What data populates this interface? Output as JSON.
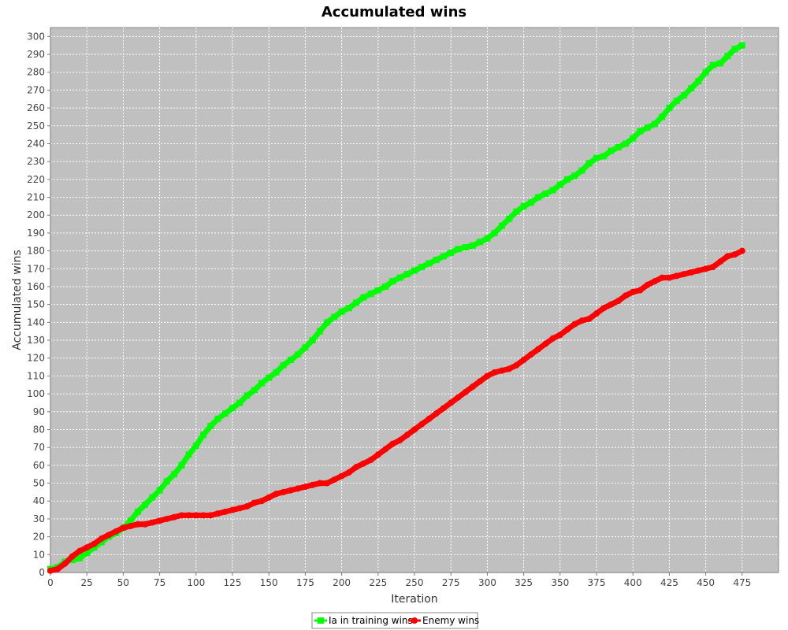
{
  "chart_data": {
    "type": "line",
    "title": "Accumulated wins",
    "xlabel": "Iteration",
    "ylabel": "Accumulated wins",
    "xlim": [
      0,
      500
    ],
    "ylim": [
      0,
      305
    ],
    "x_ticks": [
      0,
      25,
      50,
      75,
      100,
      125,
      150,
      175,
      200,
      225,
      250,
      275,
      300,
      325,
      350,
      375,
      400,
      425,
      450,
      475
    ],
    "y_ticks": [
      0,
      10,
      20,
      30,
      40,
      50,
      60,
      70,
      80,
      90,
      100,
      110,
      120,
      130,
      140,
      150,
      160,
      170,
      180,
      190,
      200,
      210,
      220,
      230,
      240,
      250,
      260,
      270,
      280,
      290,
      300
    ],
    "grid": true,
    "legend_position": "bottom-center",
    "plot_background": "#c0c0c0",
    "series": [
      {
        "name": "Ia in training wins",
        "color": "#00ff00",
        "marker": "square",
        "points": [
          [
            0,
            2
          ],
          [
            5,
            3
          ],
          [
            10,
            6
          ],
          [
            15,
            7
          ],
          [
            20,
            8
          ],
          [
            25,
            11
          ],
          [
            30,
            14
          ],
          [
            35,
            17
          ],
          [
            40,
            20
          ],
          [
            45,
            22
          ],
          [
            50,
            25
          ],
          [
            55,
            29
          ],
          [
            60,
            34
          ],
          [
            65,
            38
          ],
          [
            70,
            42
          ],
          [
            75,
            46
          ],
          [
            80,
            51
          ],
          [
            85,
            55
          ],
          [
            90,
            60
          ],
          [
            95,
            66
          ],
          [
            100,
            71
          ],
          [
            105,
            77
          ],
          [
            110,
            82
          ],
          [
            115,
            86
          ],
          [
            120,
            89
          ],
          [
            125,
            92
          ],
          [
            130,
            95
          ],
          [
            135,
            99
          ],
          [
            140,
            102
          ],
          [
            145,
            106
          ],
          [
            150,
            109
          ],
          [
            155,
            112
          ],
          [
            160,
            116
          ],
          [
            165,
            119
          ],
          [
            170,
            122
          ],
          [
            175,
            126
          ],
          [
            180,
            130
          ],
          [
            185,
            135
          ],
          [
            190,
            140
          ],
          [
            195,
            143
          ],
          [
            200,
            146
          ],
          [
            205,
            148
          ],
          [
            210,
            151
          ],
          [
            215,
            154
          ],
          [
            220,
            156
          ],
          [
            225,
            158
          ],
          [
            230,
            160
          ],
          [
            235,
            163
          ],
          [
            240,
            165
          ],
          [
            245,
            167
          ],
          [
            250,
            169
          ],
          [
            255,
            171
          ],
          [
            260,
            173
          ],
          [
            265,
            175
          ],
          [
            270,
            177
          ],
          [
            275,
            179
          ],
          [
            280,
            181
          ],
          [
            285,
            182
          ],
          [
            290,
            183
          ],
          [
            295,
            185
          ],
          [
            300,
            187
          ],
          [
            305,
            190
          ],
          [
            310,
            194
          ],
          [
            315,
            198
          ],
          [
            320,
            202
          ],
          [
            325,
            205
          ],
          [
            330,
            207
          ],
          [
            335,
            210
          ],
          [
            340,
            212
          ],
          [
            345,
            214
          ],
          [
            350,
            217
          ],
          [
            355,
            220
          ],
          [
            360,
            222
          ],
          [
            365,
            225
          ],
          [
            370,
            229
          ],
          [
            375,
            232
          ],
          [
            380,
            233
          ],
          [
            385,
            236
          ],
          [
            390,
            238
          ],
          [
            395,
            240
          ],
          [
            400,
            243
          ],
          [
            405,
            247
          ],
          [
            410,
            249
          ],
          [
            415,
            251
          ],
          [
            420,
            255
          ],
          [
            425,
            260
          ],
          [
            430,
            264
          ],
          [
            435,
            267
          ],
          [
            440,
            271
          ],
          [
            445,
            275
          ],
          [
            450,
            280
          ],
          [
            455,
            284
          ],
          [
            460,
            285
          ],
          [
            465,
            289
          ],
          [
            470,
            293
          ],
          [
            475,
            295
          ]
        ]
      },
      {
        "name": "Enemy wins",
        "color": "#ff0000",
        "marker": "circle",
        "points": [
          [
            0,
            1
          ],
          [
            5,
            2
          ],
          [
            10,
            5
          ],
          [
            15,
            9
          ],
          [
            20,
            12
          ],
          [
            25,
            14
          ],
          [
            30,
            16
          ],
          [
            35,
            19
          ],
          [
            40,
            21
          ],
          [
            45,
            23
          ],
          [
            50,
            25
          ],
          [
            55,
            26
          ],
          [
            60,
            27
          ],
          [
            65,
            27
          ],
          [
            70,
            28
          ],
          [
            75,
            29
          ],
          [
            80,
            30
          ],
          [
            85,
            31
          ],
          [
            90,
            32
          ],
          [
            95,
            32
          ],
          [
            100,
            32
          ],
          [
            105,
            32
          ],
          [
            110,
            32
          ],
          [
            115,
            33
          ],
          [
            120,
            34
          ],
          [
            125,
            35
          ],
          [
            130,
            36
          ],
          [
            135,
            37
          ],
          [
            140,
            39
          ],
          [
            145,
            40
          ],
          [
            150,
            42
          ],
          [
            155,
            44
          ],
          [
            160,
            45
          ],
          [
            165,
            46
          ],
          [
            170,
            47
          ],
          [
            175,
            48
          ],
          [
            180,
            49
          ],
          [
            185,
            50
          ],
          [
            190,
            50
          ],
          [
            195,
            52
          ],
          [
            200,
            54
          ],
          [
            205,
            56
          ],
          [
            210,
            59
          ],
          [
            215,
            61
          ],
          [
            220,
            63
          ],
          [
            225,
            66
          ],
          [
            230,
            69
          ],
          [
            235,
            72
          ],
          [
            240,
            74
          ],
          [
            245,
            77
          ],
          [
            250,
            80
          ],
          [
            255,
            83
          ],
          [
            260,
            86
          ],
          [
            265,
            89
          ],
          [
            270,
            92
          ],
          [
            275,
            95
          ],
          [
            280,
            98
          ],
          [
            285,
            101
          ],
          [
            290,
            104
          ],
          [
            295,
            107
          ],
          [
            300,
            110
          ],
          [
            305,
            112
          ],
          [
            310,
            113
          ],
          [
            315,
            114
          ],
          [
            320,
            116
          ],
          [
            325,
            119
          ],
          [
            330,
            122
          ],
          [
            335,
            125
          ],
          [
            340,
            128
          ],
          [
            345,
            131
          ],
          [
            350,
            133
          ],
          [
            355,
            136
          ],
          [
            360,
            139
          ],
          [
            365,
            141
          ],
          [
            370,
            142
          ],
          [
            375,
            145
          ],
          [
            380,
            148
          ],
          [
            385,
            150
          ],
          [
            390,
            152
          ],
          [
            395,
            155
          ],
          [
            400,
            157
          ],
          [
            405,
            158
          ],
          [
            410,
            161
          ],
          [
            415,
            163
          ],
          [
            420,
            165
          ],
          [
            425,
            165
          ],
          [
            430,
            166
          ],
          [
            435,
            167
          ],
          [
            440,
            168
          ],
          [
            445,
            169
          ],
          [
            450,
            170
          ],
          [
            455,
            171
          ],
          [
            460,
            174
          ],
          [
            465,
            177
          ],
          [
            470,
            178
          ],
          [
            475,
            180
          ]
        ]
      }
    ]
  }
}
